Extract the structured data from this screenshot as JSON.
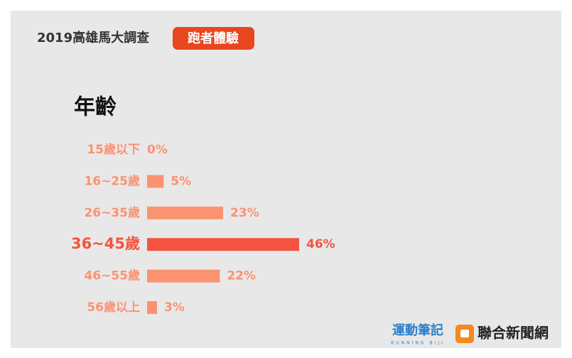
{
  "chart_data": {
    "type": "bar",
    "orientation": "horizontal",
    "header": "2019高雄馬大調查",
    "badge": "跑者體驗",
    "title": "年齡",
    "categories": [
      "15歲以下",
      "16~25歲",
      "26~35歲",
      "36~45歲",
      "46~55歲",
      "56歲以上"
    ],
    "values": [
      0,
      5,
      23,
      46,
      22,
      3
    ],
    "value_labels": [
      "0%",
      "5%",
      "23%",
      "46%",
      "22%",
      "3%"
    ],
    "colors": [
      "#fb9272",
      "#fb9272",
      "#fb9272",
      "#f4533f",
      "#fb9272",
      "#fb9272"
    ],
    "highlight": 3,
    "logos": [
      "運動筆記",
      "RUNNING BIJI",
      "聯合新聞網"
    ]
  }
}
